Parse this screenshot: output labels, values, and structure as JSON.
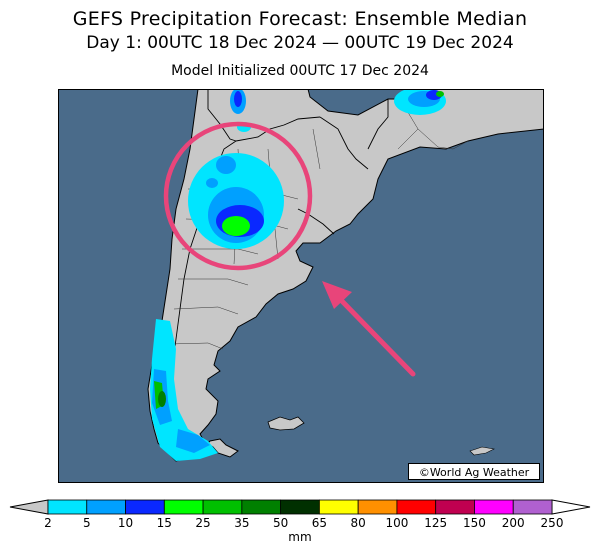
{
  "header": {
    "title": "GEFS Precipitation Forecast: Ensemble Median",
    "period": "Day 1: 00UTC 18 Dec 2024 — 00UTC 19 Dec 2024",
    "initialized": "Model Initialized 00UTC 17 Dec 2024"
  },
  "map": {
    "ocean_color": "#4a6b8a",
    "land_color": "#c8c8c8",
    "highlight_circle_color": "#e8457a",
    "arrow_color": "#e8457a",
    "credit": "©World Ag Weather"
  },
  "legend": {
    "unit": "mm",
    "ticks": [
      "2",
      "5",
      "10",
      "15",
      "25",
      "35",
      "50",
      "65",
      "80",
      "100",
      "125",
      "150",
      "200",
      "250"
    ],
    "colors": [
      "#00e5ff",
      "#00a0ff",
      "#0a28ff",
      "#00ff00",
      "#00c000",
      "#008000",
      "#003000",
      "#ffff00",
      "#ff9000",
      "#ff0000",
      "#c00050",
      "#ff00ff",
      "#b060d0"
    ],
    "under_color": "#c8c8c8",
    "over_color": "#ffffff"
  }
}
